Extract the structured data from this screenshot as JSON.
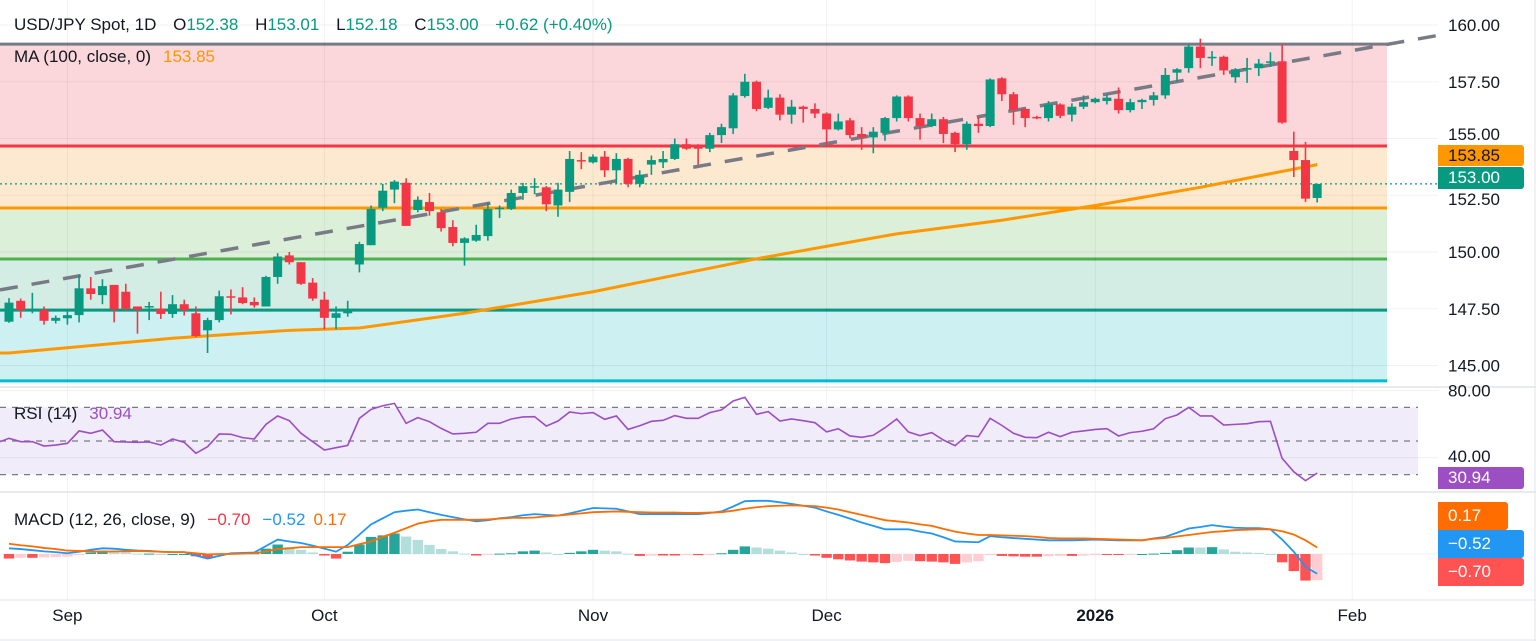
{
  "header": {
    "symbol": "USD/JPY Spot, 1D",
    "o_label": "O",
    "o_value": "152.38",
    "h_label": "H",
    "h_value": "153.01",
    "l_label": "L",
    "l_value": "152.18",
    "c_label": "C",
    "c_value": "153.00",
    "change": "+0.62 (+0.40%)"
  },
  "ma_legend": {
    "label": "MA (100, close, 0)",
    "value": "153.85"
  },
  "rsi_legend": {
    "label": "RSI (14)",
    "value": "30.94"
  },
  "macd_legend": {
    "label": "MACD (12, 26, close, 9)",
    "hist": "−0.70",
    "macd": "−0.52",
    "signal": "0.17"
  },
  "badges": {
    "ma": "153.85",
    "last_price": "153.00",
    "rsi": "30.94",
    "signal": "0.17",
    "macd": "−0.52",
    "hist": "−0.70"
  },
  "colors": {
    "up": "#089981",
    "down": "#f23645",
    "ma": "#ff9800",
    "trendline": "#787b86",
    "rsi": "#9c4fc3",
    "macd": "#2196f3",
    "signal": "#ff6d00",
    "hist_up_strong": "#26a69a",
    "hist_up_weak": "#b2dfdb",
    "hist_down_strong": "#ff5252",
    "hist_down_weak": "#ffcdd2"
  },
  "chart_data": {
    "type": "candlestick",
    "symbol": "USD/JPY Spot",
    "interval": "1D",
    "x_ticks": [
      {
        "label": "Sep",
        "bar": 5
      },
      {
        "label": "Oct",
        "bar": 27
      },
      {
        "label": "Nov",
        "bar": 50
      },
      {
        "label": "Dec",
        "bar": 70
      },
      {
        "label": "2026",
        "bar": 93,
        "bold": true
      },
      {
        "label": "Feb",
        "bar": 115
      }
    ],
    "price_axis": {
      "ticks": [
        "160.00",
        "157.50",
        "155.00",
        "152.50",
        "150.00",
        "147.50",
        "145.00"
      ],
      "ylim": [
        143.9,
        161.1
      ]
    },
    "ohlc": [
      [
        146.93,
        147.97,
        146.88,
        147.77
      ],
      [
        147.85,
        147.95,
        147.1,
        147.45
      ],
      [
        147.4,
        148.2,
        147.3,
        147.45
      ],
      [
        147.44,
        147.6,
        146.8,
        146.97
      ],
      [
        146.97,
        147.2,
        146.85,
        147.1
      ],
      [
        147.08,
        147.5,
        146.8,
        147.22
      ],
      [
        147.22,
        149.0,
        146.9,
        148.4
      ],
      [
        148.4,
        148.9,
        147.9,
        148.15
      ],
      [
        148.1,
        148.8,
        147.7,
        148.5
      ],
      [
        148.55,
        148.55,
        146.9,
        147.48
      ],
      [
        148.25,
        148.6,
        147.4,
        147.5
      ],
      [
        147.6,
        147.6,
        146.4,
        147.45
      ],
      [
        147.58,
        147.8,
        147.0,
        147.62
      ],
      [
        147.5,
        148.25,
        147.05,
        147.27
      ],
      [
        147.27,
        148.1,
        147.1,
        147.7
      ],
      [
        147.7,
        147.9,
        147.2,
        147.45
      ],
      [
        147.3,
        147.6,
        146.25,
        146.3
      ],
      [
        146.55,
        147.1,
        145.55,
        147.0
      ],
      [
        147.0,
        148.3,
        146.9,
        148.05
      ],
      [
        148.05,
        148.35,
        147.25,
        148.0
      ],
      [
        148.0,
        148.45,
        147.7,
        147.75
      ],
      [
        147.8,
        148.0,
        147.55,
        147.65
      ],
      [
        147.6,
        148.95,
        147.6,
        148.9
      ],
      [
        148.9,
        149.95,
        148.6,
        149.8
      ],
      [
        149.85,
        150.0,
        149.45,
        149.55
      ],
      [
        149.55,
        149.55,
        148.55,
        148.6
      ],
      [
        148.65,
        148.85,
        147.85,
        147.95
      ],
      [
        147.9,
        148.25,
        146.6,
        147.1
      ],
      [
        147.1,
        147.6,
        146.6,
        147.3
      ],
      [
        147.3,
        147.85,
        147.15,
        147.45
      ],
      [
        149.45,
        150.45,
        149.1,
        150.35
      ],
      [
        150.3,
        152.05,
        150.3,
        151.9
      ],
      [
        151.95,
        153.0,
        151.8,
        152.7
      ],
      [
        152.75,
        153.17,
        152.15,
        153.1
      ],
      [
        153.05,
        153.25,
        151.15,
        151.15
      ],
      [
        151.85,
        152.45,
        151.75,
        152.3
      ],
      [
        152.2,
        152.6,
        151.6,
        151.8
      ],
      [
        151.75,
        151.9,
        150.9,
        151.05
      ],
      [
        151.1,
        151.4,
        150.25,
        150.4
      ],
      [
        150.4,
        150.65,
        149.4,
        150.6
      ],
      [
        150.5,
        151.2,
        150.45,
        150.75
      ],
      [
        150.7,
        152.2,
        150.5,
        151.9
      ],
      [
        151.9,
        152.05,
        151.5,
        151.95
      ],
      [
        151.9,
        152.75,
        151.85,
        152.6
      ],
      [
        152.6,
        153.05,
        152.3,
        152.9
      ],
      [
        152.85,
        153.25,
        152.55,
        152.9
      ],
      [
        152.85,
        152.9,
        151.8,
        152.1
      ],
      [
        152.05,
        153.05,
        151.55,
        152.75
      ],
      [
        152.65,
        154.45,
        152.2,
        154.1
      ],
      [
        154.05,
        154.4,
        153.65,
        154.0
      ],
      [
        153.95,
        154.3,
        153.9,
        154.2
      ],
      [
        154.2,
        154.45,
        153.3,
        153.6
      ],
      [
        153.6,
        154.35,
        153.0,
        154.1
      ],
      [
        154.1,
        154.15,
        152.85,
        153.0
      ],
      [
        153.0,
        153.6,
        152.85,
        153.4
      ],
      [
        153.85,
        154.25,
        153.4,
        154.05
      ],
      [
        153.95,
        154.45,
        153.7,
        154.1
      ],
      [
        154.1,
        155.0,
        154.05,
        154.75
      ],
      [
        154.75,
        155.0,
        154.5,
        154.55
      ],
      [
        154.7,
        154.75,
        153.85,
        154.55
      ],
      [
        154.55,
        155.25,
        154.4,
        155.15
      ],
      [
        155.15,
        155.65,
        154.8,
        155.5
      ],
      [
        155.45,
        157.0,
        155.2,
        156.9
      ],
      [
        156.87,
        157.85,
        156.8,
        157.5
      ],
      [
        157.5,
        157.55,
        156.2,
        156.3
      ],
      [
        156.35,
        157.15,
        156.3,
        156.8
      ],
      [
        156.8,
        156.95,
        155.8,
        156.05
      ],
      [
        156.05,
        156.7,
        155.65,
        156.4
      ],
      [
        156.4,
        156.45,
        155.7,
        156.3
      ],
      [
        156.3,
        156.55,
        155.9,
        156.1
      ],
      [
        156.1,
        156.15,
        154.7,
        155.4
      ],
      [
        155.4,
        156.1,
        155.35,
        155.75
      ],
      [
        155.8,
        155.9,
        155.0,
        155.15
      ],
      [
        155.2,
        155.5,
        154.5,
        155.05
      ],
      [
        155.05,
        155.5,
        154.35,
        155.3
      ],
      [
        155.25,
        155.95,
        154.9,
        155.9
      ],
      [
        155.9,
        156.9,
        155.75,
        156.85
      ],
      [
        156.85,
        156.9,
        155.75,
        155.9
      ],
      [
        155.9,
        156.1,
        154.95,
        155.55
      ],
      [
        155.55,
        156.1,
        155.5,
        155.85
      ],
      [
        155.85,
        155.95,
        154.8,
        155.2
      ],
      [
        155.25,
        155.3,
        154.4,
        154.75
      ],
      [
        154.75,
        155.75,
        154.5,
        155.65
      ],
      [
        155.65,
        155.95,
        155.25,
        155.55
      ],
      [
        155.55,
        157.65,
        155.5,
        157.6
      ],
      [
        157.65,
        157.7,
        156.65,
        156.95
      ],
      [
        156.95,
        157.05,
        155.6,
        156.25
      ],
      [
        156.3,
        156.35,
        155.5,
        155.9
      ],
      [
        155.95,
        156.0,
        155.85,
        155.9
      ],
      [
        155.9,
        156.65,
        155.75,
        156.5
      ],
      [
        156.5,
        156.55,
        155.9,
        156.0
      ],
      [
        156.05,
        156.55,
        155.75,
        156.4
      ],
      [
        156.4,
        156.9,
        156.3,
        156.6
      ],
      [
        156.6,
        156.8,
        156.55,
        156.75
      ],
      [
        156.65,
        156.95,
        156.5,
        156.8
      ],
      [
        156.75,
        157.25,
        156.1,
        156.25
      ],
      [
        156.25,
        156.75,
        156.15,
        156.6
      ],
      [
        156.6,
        156.75,
        156.3,
        156.7
      ],
      [
        156.7,
        157.05,
        156.45,
        156.9
      ],
      [
        156.9,
        158.1,
        156.75,
        157.8
      ],
      [
        157.9,
        158.1,
        157.5,
        158.05
      ],
      [
        158.1,
        159.15,
        157.9,
        159.05
      ],
      [
        159.05,
        159.4,
        158.1,
        158.55
      ],
      [
        158.55,
        158.85,
        158.2,
        158.6
      ],
      [
        158.6,
        158.65,
        157.8,
        158.0
      ],
      [
        157.7,
        158.1,
        157.45,
        158.05
      ],
      [
        158.05,
        158.55,
        157.45,
        158.1
      ],
      [
        158.1,
        158.5,
        157.75,
        158.3
      ],
      [
        158.35,
        158.8,
        158.15,
        158.4
      ],
      [
        158.4,
        159.15,
        155.65,
        155.7
      ],
      [
        154.45,
        155.3,
        153.3,
        154.05
      ],
      [
        154.05,
        154.85,
        152.2,
        152.35
      ],
      [
        152.38,
        153.01,
        152.18,
        153.0
      ]
    ],
    "ma100_points": [
      [
        0,
        145.55
      ],
      [
        14,
        146.2
      ],
      [
        24,
        146.55
      ],
      [
        30,
        146.65
      ],
      [
        39,
        147.3
      ],
      [
        50,
        148.25
      ],
      [
        64,
        149.7
      ],
      [
        76,
        150.8
      ],
      [
        85,
        151.4
      ],
      [
        93,
        152.05
      ],
      [
        102,
        152.85
      ],
      [
        112,
        153.85
      ]
    ],
    "trendline": {
      "style": "dashed",
      "points": [
        [
          0,
          148.4
        ],
        [
          112,
          158.6
        ]
      ],
      "extend": "right"
    },
    "fib_levels": [
      {
        "price": 159.16,
        "line": "#787b86",
        "fill": "#fbd6da"
      },
      {
        "price": 154.67,
        "line": "#f23645",
        "fill": "#fde9cf"
      },
      {
        "price": 151.94,
        "line": "#ff9800",
        "fill": "#dcefd9"
      },
      {
        "price": 149.69,
        "line": "#4caf50",
        "fill": "#d3ece4"
      },
      {
        "price": 147.44,
        "line": "#089981",
        "fill": "#cdf0f3"
      },
      {
        "price": 144.32,
        "line": "#00bcd4",
        "fill": null
      }
    ],
    "last_price": 153.0,
    "rsi": {
      "period": 14,
      "levels": [
        70,
        50,
        30
      ],
      "axis_ticks": [
        "80.00",
        "40.00"
      ],
      "values": [
        51.6,
        49.6,
        49.6,
        47.0,
        47.6,
        48.6,
        56.0,
        54.6,
        56.5,
        49.6,
        49.4,
        49.2,
        49.4,
        47.6,
        51.2,
        49.2,
        42.7,
        46.6,
        54.2,
        54.0,
        52.0,
        51.2,
        59.9,
        64.9,
        62.1,
        54.6,
        49.6,
        44.6,
        46.0,
        47.4,
        63.5,
        68.8,
        71.0,
        72.4,
        60.5,
        63.9,
        61.5,
        57.5,
        54.2,
        54.6,
        55.2,
        60.5,
        60.5,
        63.1,
        64.3,
        64.5,
        58.9,
        61.9,
        67.3,
        66.3,
        66.9,
        62.9,
        64.9,
        56.9,
        59.1,
        61.7,
        62.3,
        65.1,
        63.5,
        63.5,
        66.9,
        68.5,
        73.8,
        76.0,
        65.9,
        67.5,
        61.9,
        63.1,
        62.1,
        60.9,
        55.4,
        57.3,
        53.0,
        52.2,
        53.4,
        57.9,
        63.1,
        55.4,
        53.2,
        55.0,
        50.6,
        47.2,
        53.2,
        52.6,
        63.5,
        59.3,
        54.6,
        52.2,
        52.0,
        55.2,
        52.6,
        55.2,
        56.0,
        56.9,
        57.3,
        53.0,
        55.0,
        55.8,
        57.3,
        63.3,
        65.5,
        70.0,
        64.9,
        64.9,
        59.5,
        59.9,
        60.3,
        61.5,
        61.7,
        39.7,
        31.7,
        26.4,
        30.94
      ]
    },
    "macd": {
      "macd": [
        0.15,
        0.13,
        0.1,
        0.07,
        0.05,
        0.02,
        0.06,
        0.11,
        0.15,
        0.14,
        0.11,
        0.09,
        0.08,
        0.06,
        0.05,
        0.05,
        -0.04,
        -0.12,
        -0.05,
        0.02,
        0.03,
        0.04,
        0.21,
        0.38,
        0.33,
        0.29,
        0.22,
        0.14,
        0.06,
        0.24,
        0.51,
        0.78,
        0.94,
        1.1,
        1.14,
        1.17,
        1.1,
        1.03,
        0.97,
        0.91,
        0.86,
        0.89,
        0.94,
        0.97,
        1.02,
        1.05,
        1.03,
        1.01,
        1.07,
        1.14,
        1.21,
        1.2,
        1.19,
        1.12,
        1.05,
        1.05,
        1.05,
        1.05,
        1.05,
        1.05,
        1.08,
        1.12,
        1.25,
        1.39,
        1.4,
        1.4,
        1.36,
        1.32,
        1.27,
        1.22,
        1.12,
        1.03,
        0.93,
        0.83,
        0.74,
        0.65,
        0.65,
        0.65,
        0.59,
        0.54,
        0.44,
        0.33,
        0.32,
        0.31,
        0.47,
        0.44,
        0.42,
        0.4,
        0.38,
        0.36,
        0.36,
        0.36,
        0.37,
        0.38,
        0.37,
        0.36,
        0.36,
        0.36,
        0.41,
        0.45,
        0.56,
        0.67,
        0.71,
        0.76,
        0.72,
        0.69,
        0.68,
        0.68,
        0.65,
        0.38,
        0.06,
        -0.34,
        -0.52
      ],
      "signal": [
        0.27,
        0.23,
        0.2,
        0.16,
        0.13,
        0.09,
        0.08,
        0.07,
        0.06,
        0.07,
        0.07,
        0.08,
        0.07,
        0.06,
        0.05,
        0.05,
        0.02,
        -0.01,
        0.0,
        0.0,
        0.01,
        0.02,
        0.07,
        0.13,
        0.15,
        0.18,
        0.18,
        0.18,
        0.18,
        0.18,
        0.26,
        0.33,
        0.45,
        0.56,
        0.68,
        0.8,
        0.86,
        0.9,
        0.9,
        0.9,
        0.9,
        0.91,
        0.93,
        0.95,
        0.95,
        0.96,
        0.99,
        1.01,
        1.04,
        1.07,
        1.1,
        1.11,
        1.12,
        1.11,
        1.1,
        1.09,
        1.09,
        1.09,
        1.08,
        1.08,
        1.09,
        1.1,
        1.14,
        1.19,
        1.23,
        1.26,
        1.27,
        1.28,
        1.27,
        1.26,
        1.22,
        1.17,
        1.1,
        1.03,
        0.96,
        0.89,
        0.86,
        0.83,
        0.78,
        0.74,
        0.66,
        0.59,
        0.54,
        0.5,
        0.5,
        0.49,
        0.48,
        0.47,
        0.45,
        0.42,
        0.41,
        0.41,
        0.41,
        0.4,
        0.39,
        0.38,
        0.37,
        0.36,
        0.4,
        0.42,
        0.46,
        0.5,
        0.54,
        0.58,
        0.6,
        0.63,
        0.64,
        0.65,
        0.65,
        0.6,
        0.51,
        0.36,
        0.17
      ]
    }
  }
}
